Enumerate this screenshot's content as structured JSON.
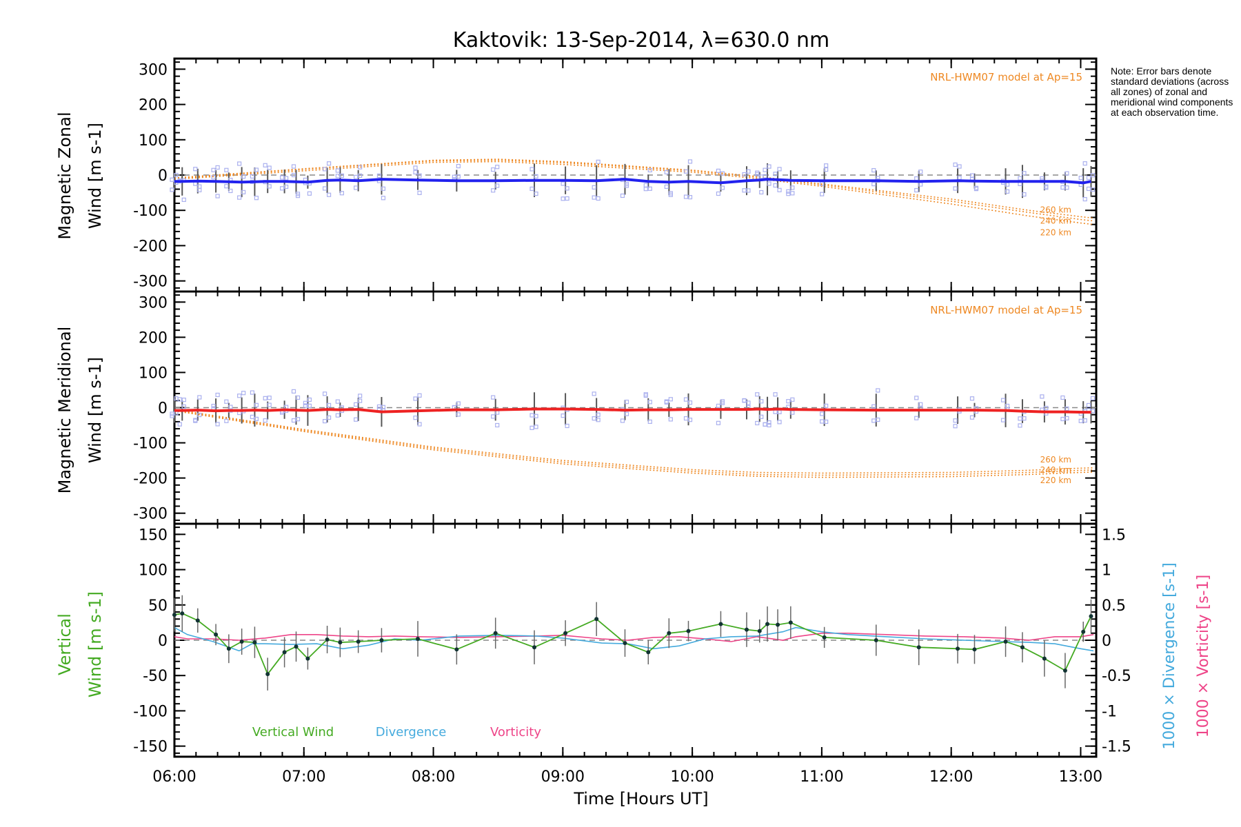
{
  "title": "Kaktovik: 13-Sep-2014, λ=630.0 nm",
  "note": "Note: Error bars denote standard deviations (across all zones) of zonal and meridional wind components at each observation time.",
  "colors": {
    "zonal": "#2222ee",
    "meridional": "#ee2222",
    "model": "#ee8822",
    "vertical": "#44aa22",
    "divergence": "#44aadd",
    "vorticity": "#ee4488",
    "zone": "#aab0ee",
    "errorbar": "#555555"
  },
  "chart_data": [
    {
      "type": "line",
      "panel": "zonal",
      "ylabel_line1": "Magnetic Zonal",
      "ylabel_line2": "Wind [m s-1]",
      "ylim": [
        -330,
        330
      ],
      "yticks": [
        300,
        200,
        100,
        0,
        -100,
        -200,
        -300
      ],
      "model_label": "NRL-HWM07 model at Ap=15",
      "model_series": [
        {
          "name": "260 km",
          "x": [
            6.0,
            7.0,
            8.0,
            8.5,
            9.0,
            10.0,
            10.5,
            11.0,
            12.0,
            12.6,
            13.0,
            13.1
          ],
          "values": [
            -8,
            18,
            42,
            45,
            38,
            14,
            -4,
            -25,
            -68,
            -100,
            -118,
            -122
          ]
        },
        {
          "name": "240 km",
          "x": [
            6.0,
            7.0,
            8.0,
            8.5,
            9.0,
            10.0,
            10.5,
            11.0,
            12.0,
            12.6,
            13.0,
            13.1
          ],
          "values": [
            -10,
            16,
            40,
            42,
            35,
            12,
            -6,
            -28,
            -74,
            -106,
            -126,
            -130
          ]
        },
        {
          "name": "220 km",
          "x": [
            6.0,
            7.0,
            8.0,
            8.5,
            9.0,
            10.0,
            10.5,
            11.0,
            12.0,
            12.6,
            13.0,
            13.1
          ],
          "values": [
            -12,
            12,
            36,
            38,
            30,
            8,
            -10,
            -32,
            -82,
            -116,
            -136,
            -140
          ]
        }
      ],
      "series": [
        {
          "x": [
            6.0,
            6.06,
            6.18,
            6.32,
            6.42,
            6.52,
            6.62,
            6.72,
            6.85,
            6.94,
            7.03,
            7.18,
            7.28,
            7.42,
            7.6,
            7.88,
            8.18,
            8.48,
            8.78,
            9.02,
            9.26,
            9.48,
            9.66,
            9.82,
            9.97,
            10.22,
            10.42,
            10.52,
            10.58,
            10.66,
            10.76,
            11.02,
            11.42,
            11.75,
            12.05,
            12.18,
            12.42,
            12.55,
            12.72,
            12.88,
            13.02,
            13.08
          ],
          "values": [
            -18,
            -18,
            -17,
            -18,
            -19,
            -20,
            -19,
            -18,
            -18,
            -19,
            -20,
            -15,
            -14,
            -16,
            -12,
            -14,
            -16,
            -16,
            -15,
            -15,
            -16,
            -12,
            -18,
            -20,
            -18,
            -22,
            -16,
            -14,
            -12,
            -13,
            -15,
            -16,
            -16,
            -18,
            -16,
            -17,
            -18,
            -18,
            -18,
            -18,
            -22,
            -18
          ]
        }
      ]
    },
    {
      "type": "line",
      "panel": "meridional",
      "ylabel_line1": "Magnetic Meridional",
      "ylabel_line2": "Wind [m s-1]",
      "ylim": [
        -330,
        330
      ],
      "yticks": [
        300,
        200,
        100,
        0,
        -100,
        -200,
        -300
      ],
      "model_label": "NRL-HWM07 model at Ap=15",
      "model_series": [
        {
          "name": "260 km",
          "x": [
            6.0,
            7.0,
            8.0,
            9.0,
            10.0,
            10.5,
            11.0,
            12.0,
            12.6,
            13.0,
            13.1
          ],
          "values": [
            -5,
            -62,
            -112,
            -150,
            -176,
            -184,
            -186,
            -184,
            -178,
            -172,
            -171
          ]
        },
        {
          "name": "240 km",
          "x": [
            6.0,
            7.0,
            8.0,
            9.0,
            10.0,
            10.5,
            11.0,
            12.0,
            12.6,
            13.0,
            13.1
          ],
          "values": [
            -7,
            -65,
            -116,
            -155,
            -181,
            -190,
            -192,
            -190,
            -184,
            -178,
            -177
          ]
        },
        {
          "name": "220 km",
          "x": [
            6.0,
            7.0,
            8.0,
            9.0,
            10.0,
            10.5,
            11.0,
            12.0,
            12.6,
            13.0,
            13.1
          ],
          "values": [
            -9,
            -68,
            -120,
            -160,
            -186,
            -195,
            -198,
            -196,
            -190,
            -184,
            -183
          ]
        }
      ],
      "series": [
        {
          "x": [
            6.0,
            6.06,
            6.18,
            6.32,
            6.42,
            6.52,
            6.62,
            6.72,
            6.85,
            6.94,
            7.03,
            7.18,
            7.28,
            7.42,
            7.6,
            7.88,
            8.18,
            8.48,
            8.78,
            9.02,
            9.26,
            9.48,
            9.66,
            9.82,
            9.97,
            10.22,
            10.42,
            10.52,
            10.58,
            10.66,
            10.76,
            11.02,
            11.42,
            11.75,
            12.05,
            12.18,
            12.42,
            12.55,
            12.72,
            12.88,
            13.02,
            13.08
          ],
          "values": [
            -8,
            -8,
            -7,
            -9,
            -8,
            -8,
            -7,
            -8,
            -6,
            -7,
            -8,
            -5,
            -6,
            -5,
            -12,
            -9,
            -6,
            -6,
            -4,
            -4,
            -5,
            -7,
            -6,
            -6,
            -5,
            -5,
            -5,
            -4,
            -5,
            -4,
            -5,
            -6,
            -7,
            -7,
            -7,
            -7,
            -8,
            -10,
            -12,
            -12,
            -13,
            -13
          ]
        }
      ]
    },
    {
      "type": "line",
      "panel": "vertical",
      "ylabel_line1": "Vertical",
      "ylabel_line2": "Wind [m s-1]",
      "ylim": [
        -165,
        165
      ],
      "yticks": [
        150,
        100,
        50,
        0,
        -50,
        -100,
        -150
      ],
      "right_ylim": [
        -1.65,
        1.65
      ],
      "right_yticks": [
        1.5,
        1.0,
        0.5,
        0.0,
        -0.5,
        -1.0,
        -1.5
      ],
      "right_label_divergence": "1000 × Divergence [s-1]",
      "right_label_vorticity": "1000 × Vorticity [s-1]",
      "legend": [
        "Vertical Wind",
        "Divergence",
        "Vorticity"
      ],
      "series": [
        {
          "name": "Vertical Wind",
          "x": [
            6.0,
            6.06,
            6.18,
            6.32,
            6.42,
            6.52,
            6.62,
            6.72,
            6.85,
            6.94,
            7.03,
            7.18,
            7.28,
            7.42,
            7.6,
            7.88,
            8.18,
            8.48,
            8.78,
            9.02,
            9.26,
            9.48,
            9.66,
            9.82,
            9.97,
            10.22,
            10.42,
            10.52,
            10.58,
            10.66,
            10.76,
            11.02,
            11.42,
            11.75,
            12.05,
            12.18,
            12.42,
            12.55,
            12.72,
            12.88,
            13.02,
            13.08
          ],
          "values": [
            36,
            38,
            28,
            8,
            -12,
            -2,
            -3,
            -48,
            -17,
            -9,
            -26,
            1,
            -3,
            -2,
            0,
            2,
            -13,
            10,
            -10,
            10,
            30,
            -4,
            -17,
            10,
            13,
            23,
            15,
            13,
            23,
            22,
            25,
            4,
            0,
            -10,
            -12,
            -13,
            -2,
            -10,
            -26,
            -43,
            12,
            34
          ]
        },
        {
          "name": "Divergence",
          "x": [
            6.0,
            6.1,
            6.3,
            6.5,
            6.6,
            6.7,
            6.9,
            7.1,
            7.3,
            7.5,
            7.7,
            7.9,
            8.2,
            8.5,
            8.8,
            9.0,
            9.3,
            9.5,
            9.7,
            9.9,
            10.1,
            10.3,
            10.5,
            10.7,
            10.8,
            11.0,
            11.2,
            11.5,
            11.8,
            12.1,
            12.4,
            12.6,
            12.8,
            13.0,
            13.1
          ],
          "values": [
            0.18,
            0.08,
            -0.02,
            -0.15,
            -0.05,
            -0.05,
            -0.06,
            -0.05,
            -0.12,
            -0.07,
            0.02,
            0.0,
            0.06,
            0.07,
            0.06,
            0.03,
            -0.04,
            -0.05,
            -0.12,
            -0.08,
            0.02,
            0.05,
            0.06,
            0.12,
            0.18,
            0.12,
            0.08,
            0.05,
            0.02,
            0.0,
            -0.02,
            -0.03,
            -0.05,
            -0.12,
            -0.15
          ]
        },
        {
          "name": "Vorticity",
          "x": [
            6.0,
            6.1,
            6.3,
            6.5,
            6.7,
            6.9,
            7.1,
            7.3,
            7.5,
            7.7,
            7.9,
            8.2,
            8.5,
            8.8,
            9.0,
            9.3,
            9.5,
            9.7,
            9.9,
            10.1,
            10.3,
            10.5,
            10.7,
            10.8,
            11.0,
            11.2,
            11.5,
            11.8,
            12.1,
            12.4,
            12.6,
            12.8,
            13.0,
            13.1
          ],
          "values": [
            0.05,
            0.02,
            0.02,
            0.0,
            0.03,
            0.08,
            0.08,
            0.06,
            0.05,
            0.06,
            0.05,
            0.04,
            0.05,
            0.06,
            0.07,
            0.02,
            0.0,
            0.04,
            0.05,
            0.02,
            -0.02,
            0.05,
            0.0,
            0.05,
            0.1,
            0.1,
            0.08,
            0.06,
            0.05,
            0.03,
            0.0,
            0.05,
            0.05,
            0.08
          ]
        }
      ]
    }
  ],
  "xaxis": {
    "label": "Time [Hours UT]",
    "xlim": [
      6.0,
      13.12
    ],
    "tick_values": [
      6,
      7,
      8,
      9,
      10,
      11,
      12,
      13
    ],
    "tick_labels": [
      "06:00",
      "07:00",
      "08:00",
      "09:00",
      "10:00",
      "11:00",
      "12:00",
      "13:00"
    ]
  },
  "panel_labels": {
    "zonal_model": "NRL-HWM07 model at Ap=15",
    "meridional_model": "NRL-HWM07 model at Ap=15",
    "altitudes": [
      "260 km",
      "240 km",
      "220 km"
    ]
  }
}
